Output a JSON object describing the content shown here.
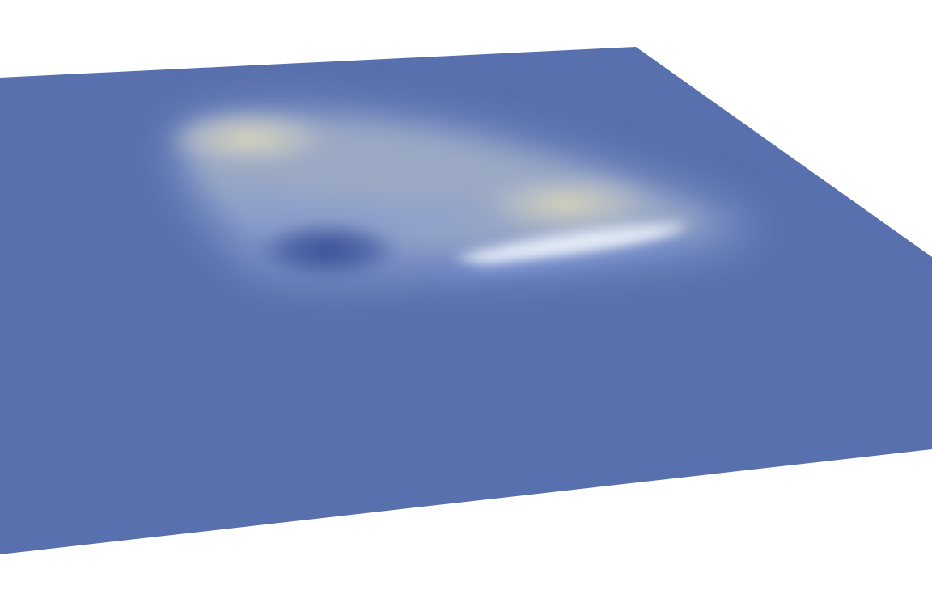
{
  "scene": {
    "background_color": "#ffffff",
    "surface_base_color": "#5870ad",
    "surface_edge_color": "#5a72ae",
    "colormap": {
      "low": "#3f539a",
      "mid_low": "#6f8cd0",
      "mid": "#98a8c4",
      "high_pale": "#e6eef8",
      "high_warm": "#d8d2b8"
    },
    "features": [
      "raised-bump-upper-left",
      "raised-bump-right",
      "depression-lower-left",
      "bright-ridge-lower-right"
    ]
  }
}
